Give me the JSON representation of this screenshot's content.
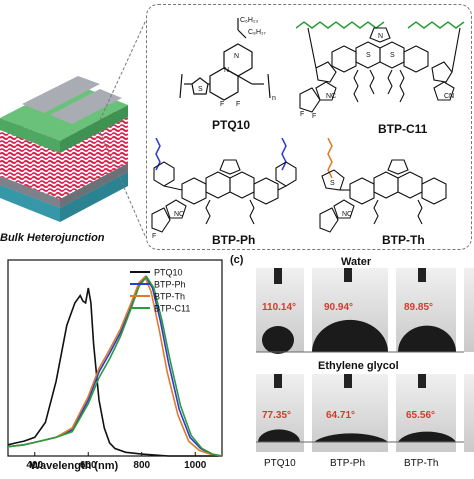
{
  "device": {
    "label": "Bulk Heterojunction"
  },
  "molecules": {
    "ptq10": {
      "label": "PTQ10",
      "sub_top": "C₆H₁₃",
      "sub_side": "C₈H₁₇"
    },
    "btp_c11": {
      "label": "BTP-C11"
    },
    "btp_ph": {
      "label": "BTP-Ph"
    },
    "btp_th": {
      "label": "BTP-Th"
    }
  },
  "panel_c": {
    "letter": "(c)",
    "rows": [
      {
        "title": "Water",
        "angles": [
          "110.14°",
          "90.94°",
          "89.85°"
        ]
      },
      {
        "title": "Ethylene glycol",
        "angles": [
          "77.35°",
          "64.71°",
          "65.56°"
        ]
      }
    ],
    "columns": [
      "PTQ10",
      "BTP-Ph",
      "BTP-Th"
    ]
  },
  "chart_data": {
    "type": "line",
    "xlabel": "Wavelength (nm)",
    "ylabel": "",
    "xlim": [
      300,
      1100
    ],
    "ylim": [
      0,
      1.05
    ],
    "xticks": [
      400,
      600,
      800,
      1000
    ],
    "series": [
      {
        "name": "PTQ10",
        "color": "#111111",
        "x": [
          300,
          330,
          360,
          400,
          440,
          480,
          520,
          550,
          570,
          580,
          590,
          600,
          610,
          620,
          640,
          660,
          680,
          700,
          740,
          800,
          900,
          1000,
          1100
        ],
        "y": [
          0.06,
          0.07,
          0.08,
          0.1,
          0.18,
          0.4,
          0.7,
          0.82,
          0.86,
          0.83,
          0.82,
          0.9,
          0.82,
          0.6,
          0.3,
          0.15,
          0.07,
          0.04,
          0.02,
          0.01,
          0.0,
          0.0,
          0.0
        ]
      },
      {
        "name": "BTP-Ph",
        "color": "#2b3bd6",
        "x": [
          300,
          360,
          420,
          480,
          540,
          600,
          640,
          680,
          720,
          760,
          790,
          815,
          840,
          870,
          900,
          940,
          980,
          1020,
          1060,
          1100
        ],
        "y": [
          0.05,
          0.06,
          0.08,
          0.1,
          0.14,
          0.3,
          0.45,
          0.55,
          0.66,
          0.8,
          0.92,
          0.96,
          0.9,
          0.72,
          0.5,
          0.25,
          0.1,
          0.04,
          0.01,
          0.0
        ]
      },
      {
        "name": "BTP-Th",
        "color": "#e07a2a",
        "x": [
          300,
          360,
          420,
          480,
          540,
          600,
          640,
          680,
          720,
          760,
          790,
          812,
          835,
          865,
          895,
          935,
          975,
          1015,
          1055,
          1100
        ],
        "y": [
          0.05,
          0.06,
          0.08,
          0.1,
          0.15,
          0.32,
          0.47,
          0.57,
          0.68,
          0.82,
          0.93,
          0.96,
          0.88,
          0.68,
          0.45,
          0.22,
          0.08,
          0.03,
          0.01,
          0.0
        ]
      },
      {
        "name": "BTP-C11",
        "color": "#2a9a3a",
        "x": [
          300,
          360,
          420,
          480,
          540,
          600,
          640,
          680,
          720,
          760,
          790,
          818,
          845,
          875,
          905,
          945,
          985,
          1025,
          1065,
          1100
        ],
        "y": [
          0.05,
          0.06,
          0.08,
          0.1,
          0.13,
          0.28,
          0.42,
          0.52,
          0.64,
          0.79,
          0.91,
          0.96,
          0.9,
          0.73,
          0.52,
          0.27,
          0.11,
          0.04,
          0.01,
          0.0
        ]
      }
    ]
  }
}
